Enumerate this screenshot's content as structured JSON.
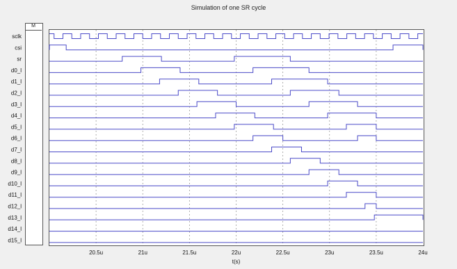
{
  "window": {
    "title": "Simulation of one SR cycle",
    "legend_tag": "M"
  },
  "colors": {
    "wave": "#4a4ac8",
    "grid": "#999999",
    "frame": "#555555"
  },
  "chart_data": {
    "type": "line",
    "title": "Simulation of one SR cycle",
    "xlabel": "t(s)",
    "xlim": [
      20.0,
      24.0
    ],
    "x_ticks": [
      "20.5u",
      "21u",
      "21.5u",
      "22u",
      "22.5u",
      "23u",
      "23.5u",
      "24u"
    ],
    "x_tick_values": [
      20.5,
      21.0,
      21.5,
      22.0,
      22.5,
      23.0,
      23.5,
      24.0
    ],
    "grid": true,
    "clock_period": 0.19,
    "clock_start": 20.05,
    "signals": [
      {
        "name": "sclk",
        "clock": true
      },
      {
        "name": "csi",
        "high": [
          [
            20.0,
            20.18
          ],
          [
            23.68,
            24.0
          ]
        ]
      },
      {
        "name": "sr",
        "high": [
          [
            20.78,
            21.2
          ],
          [
            21.98,
            22.58
          ]
        ]
      },
      {
        "name": "d0_l",
        "high": [
          [
            20.98,
            21.4
          ],
          [
            22.18,
            22.78
          ]
        ]
      },
      {
        "name": "d1_l",
        "high": [
          [
            21.18,
            21.6
          ],
          [
            22.38,
            22.98
          ]
        ]
      },
      {
        "name": "d2_l",
        "high": [
          [
            21.38,
            21.8
          ],
          [
            22.58,
            23.1
          ]
        ]
      },
      {
        "name": "d3_l",
        "high": [
          [
            21.58,
            22.0
          ],
          [
            22.78,
            23.3
          ]
        ]
      },
      {
        "name": "d4_l",
        "high": [
          [
            21.78,
            22.2
          ],
          [
            22.98,
            23.5
          ]
        ]
      },
      {
        "name": "d5_l",
        "high": [
          [
            21.98,
            22.4
          ],
          [
            23.18,
            23.5
          ]
        ]
      },
      {
        "name": "d6_l",
        "high": [
          [
            22.18,
            22.5
          ],
          [
            23.3,
            23.5
          ]
        ]
      },
      {
        "name": "d7_l",
        "high": [
          [
            22.38,
            22.7
          ]
        ]
      },
      {
        "name": "d8_l",
        "high": [
          [
            22.58,
            22.9
          ]
        ]
      },
      {
        "name": "d9_l",
        "high": [
          [
            22.78,
            23.1
          ]
        ]
      },
      {
        "name": "d10_l",
        "high": [
          [
            22.98,
            23.3
          ]
        ]
      },
      {
        "name": "d11_l",
        "high": [
          [
            23.18,
            23.5
          ]
        ]
      },
      {
        "name": "d12_l",
        "high": [
          [
            23.38,
            23.5
          ]
        ]
      },
      {
        "name": "d13_l",
        "high": [
          [
            23.48,
            24.0
          ]
        ]
      },
      {
        "name": "d14_l",
        "high": []
      },
      {
        "name": "d15_l",
        "high": []
      }
    ]
  }
}
